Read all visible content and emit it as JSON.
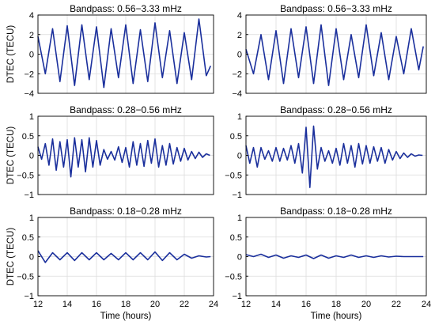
{
  "chart_data": [
    {
      "type": "line",
      "title": "Bandpass: 0.56−3.33 mHz",
      "ylabel": "DTEC (TECU)",
      "xlabel": "",
      "xlim": [
        12,
        24
      ],
      "ylim": [
        -4,
        4
      ],
      "yticks": [
        "4",
        "2",
        "0",
        "−2",
        "−4"
      ],
      "xticks": [],
      "grid": true,
      "series": [
        {
          "x": [
            12.0,
            12.5,
            13.0,
            13.5,
            14.0,
            14.5,
            15.0,
            15.5,
            16.0,
            16.5,
            17.0,
            17.5,
            18.0,
            18.5,
            19.0,
            19.5,
            20.0,
            20.5,
            21.0,
            21.5,
            22.0,
            22.5,
            23.0,
            23.5,
            23.8
          ],
          "y": [
            1.8,
            -2.0,
            2.6,
            -2.8,
            2.9,
            -3.2,
            3.0,
            -2.6,
            2.8,
            -3.4,
            2.6,
            -2.4,
            3.0,
            -3.0,
            2.5,
            -2.8,
            3.2,
            -2.4,
            2.4,
            -3.0,
            2.2,
            -2.6,
            3.6,
            -2.2,
            -1.2
          ]
        }
      ]
    },
    {
      "type": "line",
      "title": "Bandpass: 0.56−3.33 mHz",
      "ylabel": "",
      "xlabel": "",
      "xlim": [
        12,
        24
      ],
      "ylim": [
        -4,
        4
      ],
      "yticks": [
        "4",
        "2",
        "0",
        "−2",
        "−4"
      ],
      "xticks": [],
      "grid": true,
      "series": [
        {
          "x": [
            12.0,
            12.5,
            13.0,
            13.5,
            14.0,
            14.5,
            15.0,
            15.5,
            16.0,
            16.5,
            17.0,
            17.5,
            18.0,
            18.5,
            19.0,
            19.5,
            20.0,
            20.5,
            21.0,
            21.5,
            22.0,
            22.5,
            23.0,
            23.5,
            23.8
          ],
          "y": [
            0.5,
            -2.0,
            2.0,
            -2.6,
            2.4,
            -3.0,
            2.6,
            -2.4,
            2.8,
            -3.0,
            3.0,
            -3.2,
            2.6,
            -2.6,
            2.0,
            -2.4,
            3.0,
            -2.2,
            2.2,
            -2.6,
            1.8,
            -2.0,
            2.6,
            -1.6,
            0.8
          ]
        }
      ]
    },
    {
      "type": "line",
      "title": "Bandpass: 0.28−0.56 mHz",
      "ylabel": "DTEC (TECU)",
      "xlabel": "",
      "xlim": [
        12,
        24
      ],
      "ylim": [
        -1,
        1
      ],
      "yticks": [
        "1",
        "0.5",
        "0",
        "−0.5",
        "−1"
      ],
      "xticks": [],
      "grid": true,
      "series": [
        {
          "x": [
            12.0,
            12.25,
            12.5,
            12.75,
            13.0,
            13.25,
            13.5,
            13.75,
            14.0,
            14.25,
            14.5,
            14.75,
            15.0,
            15.25,
            15.5,
            15.75,
            16.0,
            16.25,
            16.5,
            16.75,
            17.0,
            17.25,
            17.5,
            17.75,
            18.0,
            18.25,
            18.5,
            18.75,
            19.0,
            19.25,
            19.5,
            19.75,
            20.0,
            20.25,
            20.5,
            20.75,
            21.0,
            21.25,
            21.5,
            21.75,
            22.0,
            22.25,
            22.5,
            22.75,
            23.0,
            23.25,
            23.5,
            23.75
          ],
          "y": [
            0.22,
            -0.1,
            0.3,
            -0.25,
            0.42,
            -0.38,
            0.35,
            -0.3,
            0.4,
            -0.55,
            0.45,
            -0.3,
            0.4,
            -0.42,
            0.45,
            -0.3,
            0.38,
            -0.25,
            0.15,
            -0.1,
            0.1,
            -0.12,
            0.22,
            -0.18,
            0.2,
            -0.3,
            0.35,
            -0.25,
            0.3,
            -0.28,
            0.38,
            -0.2,
            0.42,
            -0.3,
            0.25,
            -0.25,
            0.3,
            -0.22,
            0.2,
            -0.15,
            0.18,
            -0.12,
            0.1,
            -0.08,
            0.08,
            -0.05,
            0.04,
            0.0
          ]
        }
      ]
    },
    {
      "type": "line",
      "title": "Bandpass: 0.28−0.56 mHz",
      "ylabel": "",
      "xlabel": "",
      "xlim": [
        12,
        24
      ],
      "ylim": [
        -1,
        1
      ],
      "yticks": [
        "1",
        "0.5",
        "0",
        "−0.5",
        "−1"
      ],
      "xticks": [],
      "grid": true,
      "series": [
        {
          "x": [
            12.0,
            12.25,
            12.5,
            12.75,
            13.0,
            13.25,
            13.5,
            13.75,
            14.0,
            14.25,
            14.5,
            14.75,
            15.0,
            15.25,
            15.5,
            15.75,
            16.0,
            16.25,
            16.5,
            16.75,
            17.0,
            17.25,
            17.5,
            17.75,
            18.0,
            18.25,
            18.5,
            18.75,
            19.0,
            19.25,
            19.5,
            19.75,
            20.0,
            20.25,
            20.5,
            20.75,
            21.0,
            21.25,
            21.5,
            21.75,
            22.0,
            22.25,
            22.5,
            22.75,
            23.0,
            23.25,
            23.5,
            23.75
          ],
          "y": [
            0.25,
            -0.2,
            0.2,
            -0.3,
            0.2,
            -0.1,
            0.12,
            -0.15,
            0.2,
            -0.15,
            0.18,
            -0.12,
            0.25,
            -0.2,
            0.3,
            -0.45,
            0.72,
            -0.82,
            0.75,
            -0.35,
            0.2,
            -0.15,
            0.12,
            -0.2,
            0.18,
            -0.25,
            0.3,
            -0.2,
            0.25,
            -0.3,
            0.3,
            -0.22,
            0.25,
            -0.2,
            0.22,
            -0.15,
            0.2,
            -0.2,
            0.15,
            -0.12,
            0.1,
            -0.08,
            0.06,
            -0.05,
            0.04,
            -0.02,
            0.01,
            0.0
          ]
        }
      ]
    },
    {
      "type": "line",
      "title": "Bandpass: 0.18−0.28 mHz",
      "ylabel": "DTEC (TECU)",
      "xlabel": "Time (hours)",
      "xlim": [
        12,
        24
      ],
      "ylim": [
        -1,
        1
      ],
      "yticks": [
        "1",
        "0.5",
        "0",
        "−0.5",
        "−1"
      ],
      "xticks": [
        "12",
        "14",
        "16",
        "18",
        "20",
        "22",
        "24"
      ],
      "grid": true,
      "series": [
        {
          "x": [
            12.0,
            12.5,
            13.0,
            13.5,
            14.0,
            14.5,
            15.0,
            15.5,
            16.0,
            16.5,
            17.0,
            17.5,
            18.0,
            18.5,
            19.0,
            19.5,
            20.0,
            20.5,
            21.0,
            21.5,
            22.0,
            22.5,
            23.0,
            23.5,
            23.8
          ],
          "y": [
            0.15,
            -0.15,
            0.1,
            -0.08,
            0.1,
            -0.1,
            0.1,
            -0.08,
            0.1,
            -0.08,
            0.08,
            -0.08,
            0.1,
            -0.08,
            0.1,
            -0.08,
            0.12,
            -0.1,
            0.1,
            -0.08,
            0.06,
            -0.04,
            0.02,
            -0.01,
            0.0
          ]
        }
      ]
    },
    {
      "type": "line",
      "title": "Bandpass: 0.18−0.28 mHz",
      "ylabel": "",
      "xlabel": "Time (hours)",
      "xlim": [
        12,
        24
      ],
      "ylim": [
        -1,
        1
      ],
      "yticks": [
        "1",
        "0.5",
        "0",
        "−0.5",
        "−1"
      ],
      "xticks": [
        "12",
        "14",
        "16",
        "18",
        "20",
        "22",
        "24"
      ],
      "grid": true,
      "series": [
        {
          "x": [
            12.0,
            12.5,
            13.0,
            13.5,
            14.0,
            14.5,
            15.0,
            15.5,
            16.0,
            16.5,
            17.0,
            17.5,
            18.0,
            18.5,
            19.0,
            19.5,
            20.0,
            20.5,
            21.0,
            21.5,
            22.0,
            22.5,
            23.0,
            23.5,
            23.8
          ],
          "y": [
            0.05,
            0.0,
            0.06,
            -0.02,
            0.04,
            -0.04,
            0.02,
            -0.02,
            0.04,
            -0.05,
            0.04,
            -0.04,
            0.02,
            -0.02,
            0.04,
            -0.02,
            0.02,
            -0.02,
            0.02,
            -0.01,
            0.01,
            0.0,
            0.0,
            0.0,
            0.0
          ]
        }
      ]
    }
  ],
  "colors": {
    "line": "#1a2f9c",
    "axis": "#000000",
    "grid": "#dcdcdc",
    "background": "#ffffff"
  }
}
